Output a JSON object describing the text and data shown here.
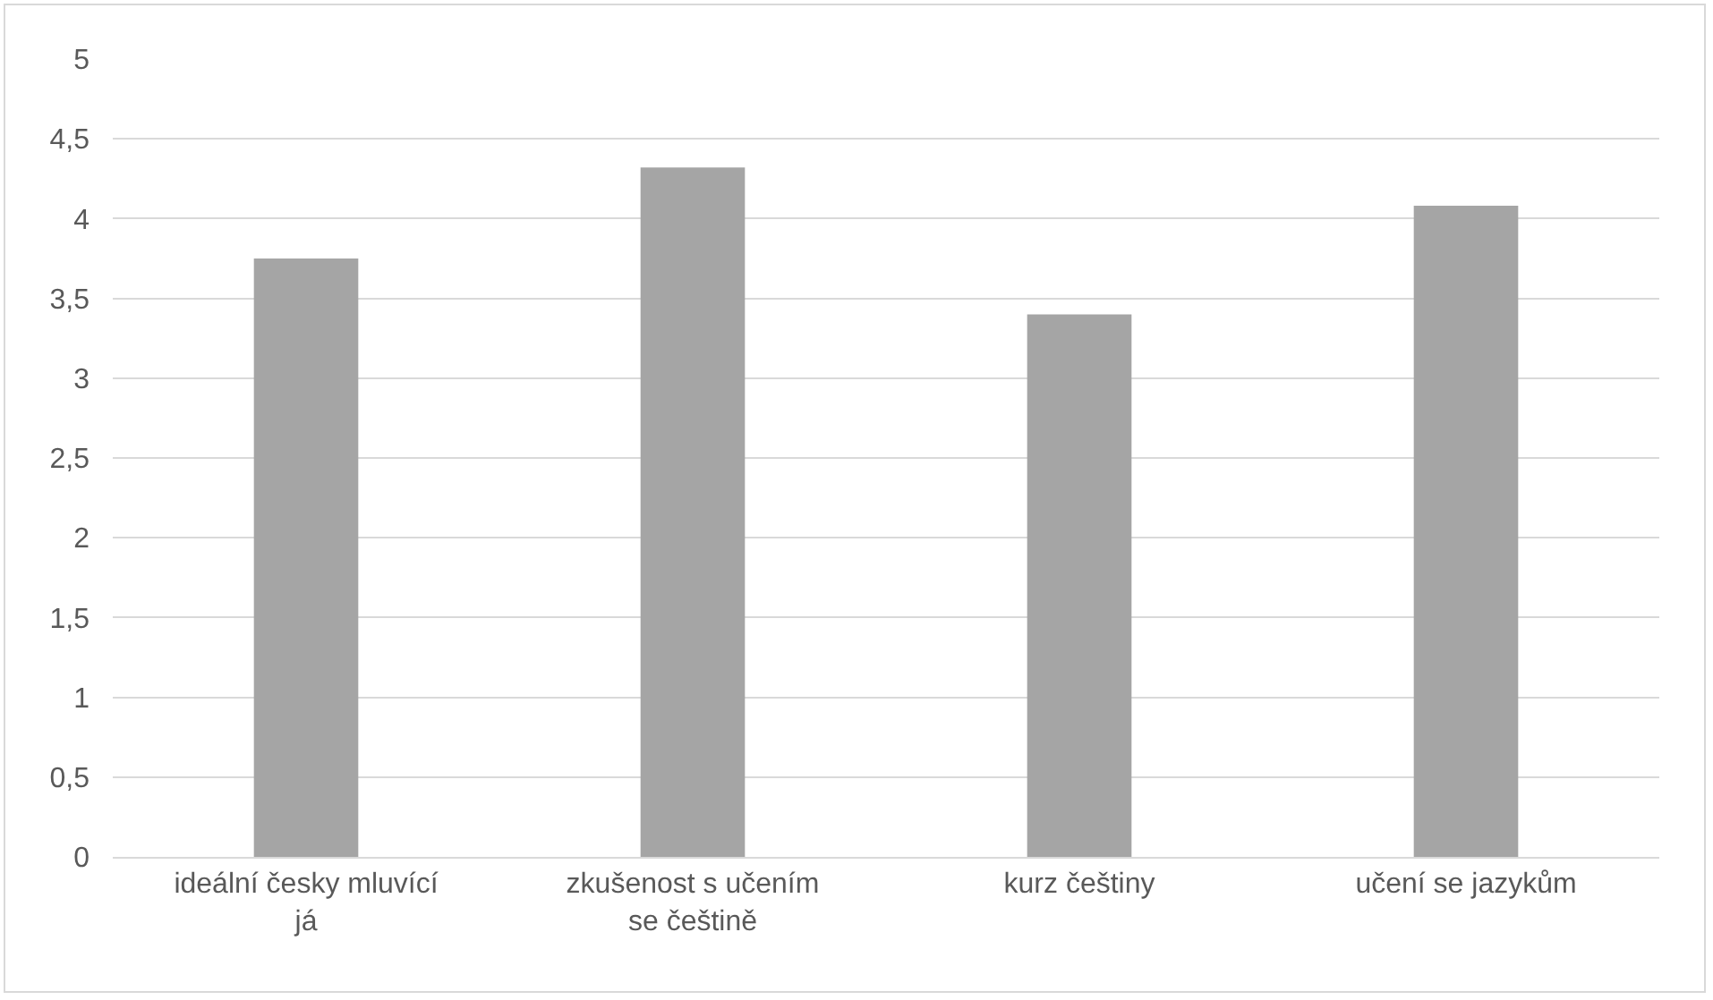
{
  "chart_data": {
    "type": "bar",
    "categories": [
      "ideální česky mluvící já",
      "zkušenost s učením se češtině",
      "kurz češtiny",
      "učení se jazykům"
    ],
    "values": [
      3.75,
      4.32,
      3.4,
      4.08
    ],
    "color": "#a5a5a5",
    "ylim": [
      0,
      5
    ],
    "yticks": [
      0,
      {
        "value": 0.5,
        "label": "0,5"
      },
      1,
      {
        "value": 1.5,
        "label": "1,5"
      },
      2,
      {
        "value": 2.5,
        "label": "2,5"
      },
      3,
      {
        "value": 3.5,
        "label": "3,5"
      },
      4,
      {
        "value": 4.5,
        "label": "4,5"
      },
      5
    ],
    "grid": "y"
  }
}
